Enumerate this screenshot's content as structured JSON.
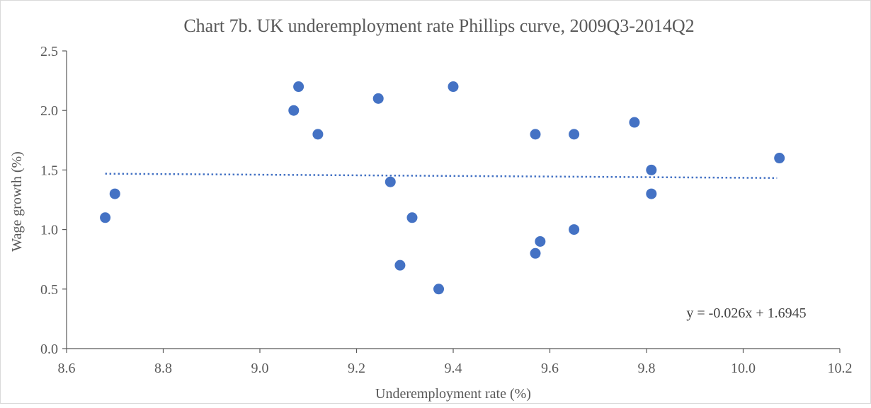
{
  "chart_data": {
    "type": "scatter",
    "title": "Chart 7b.  UK underemployment rate Phillips curve, 2009Q3-2014Q2",
    "xlabel": "Underemployment rate (%)",
    "ylabel": "Wage growth (%)",
    "xlim": [
      8.6,
      10.2
    ],
    "ylim": [
      0.0,
      2.5
    ],
    "xticks": [
      "8.6",
      "8.8",
      "9.0",
      "9.2",
      "9.4",
      "9.6",
      "9.8",
      "10.0",
      "10.2"
    ],
    "yticks": [
      "0.0",
      "0.5",
      "1.0",
      "1.5",
      "2.0",
      "2.5"
    ],
    "grid": false,
    "legend": "none",
    "marker_color": "#4472C4",
    "trendline": {
      "type": "linear",
      "equation": "y = -0.026x + 1.6945",
      "x_range": [
        8.68,
        10.07
      ],
      "color": "#4472C4",
      "style": "dotted"
    },
    "points": [
      {
        "x": 8.68,
        "y": 1.1
      },
      {
        "x": 8.7,
        "y": 1.3
      },
      {
        "x": 9.07,
        "y": 2.0
      },
      {
        "x": 9.08,
        "y": 2.2
      },
      {
        "x": 9.12,
        "y": 1.8
      },
      {
        "x": 9.245,
        "y": 2.1
      },
      {
        "x": 9.27,
        "y": 1.4
      },
      {
        "x": 9.29,
        "y": 0.7
      },
      {
        "x": 9.315,
        "y": 1.1
      },
      {
        "x": 9.37,
        "y": 0.5
      },
      {
        "x": 9.4,
        "y": 2.2
      },
      {
        "x": 9.57,
        "y": 1.8
      },
      {
        "x": 9.57,
        "y": 0.8
      },
      {
        "x": 9.58,
        "y": 0.9
      },
      {
        "x": 9.65,
        "y": 1.8
      },
      {
        "x": 9.65,
        "y": 1.0
      },
      {
        "x": 9.775,
        "y": 1.9
      },
      {
        "x": 9.81,
        "y": 1.5
      },
      {
        "x": 9.81,
        "y": 1.3
      },
      {
        "x": 10.075,
        "y": 1.6
      }
    ]
  }
}
